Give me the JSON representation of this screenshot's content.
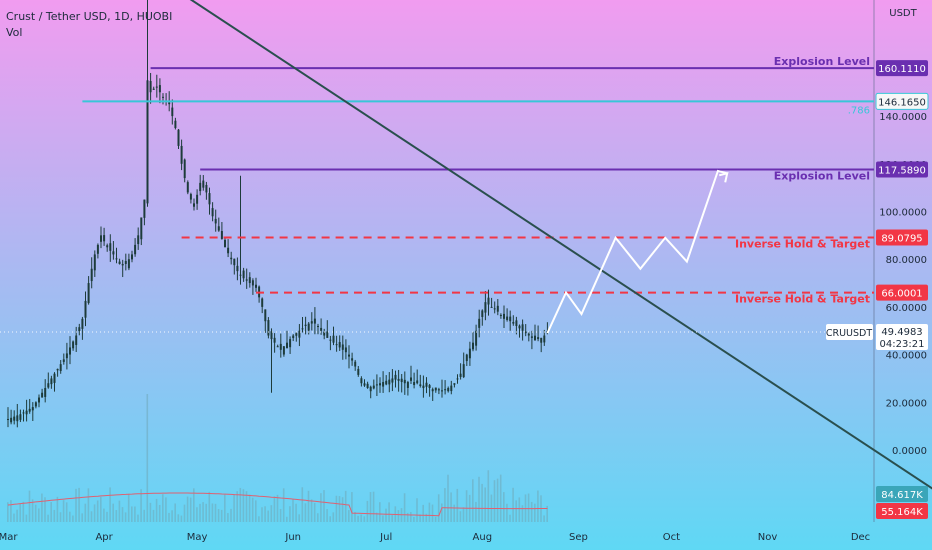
{
  "header": {
    "title": "Crust / Tether USD, 1D, HUOBI",
    "sub": "Vol"
  },
  "colors": {
    "bg_top": "#f19cf0",
    "bg_bottom": "#5fd8f4",
    "candle": "#1d3b3a",
    "trend": "#2a4f4e",
    "purple": "#6a2fb0",
    "cyan": "#39c6d8",
    "red": "#f23645",
    "white": "#ffffff",
    "vol_line": "#e06070"
  },
  "chart_data": {
    "type": "candlestick",
    "title": "Crust / Tether USD, 1D, HUOBI",
    "yaxis": {
      "unit_label": "USDT",
      "ticks": [
        "160.0000",
        "140.0000",
        "120.0000",
        "100.0000",
        "80.0000",
        "60.0000",
        "40.0000",
        "20.0000",
        "0.0000"
      ],
      "range": [
        -20,
        200
      ]
    },
    "xaxis": {
      "ticks": [
        "Mar",
        "Apr",
        "May",
        "Jun",
        "Jul",
        "Aug",
        "Sep",
        "Oct",
        "Nov",
        "Dec"
      ]
    },
    "price_path": [
      [
        0,
        13
      ],
      [
        4,
        15
      ],
      [
        8,
        18
      ],
      [
        10,
        22
      ],
      [
        14,
        30
      ],
      [
        18,
        38
      ],
      [
        22,
        48
      ],
      [
        24,
        55
      ],
      [
        26,
        70
      ],
      [
        28,
        82
      ],
      [
        30,
        90
      ],
      [
        32,
        85
      ],
      [
        34,
        82
      ],
      [
        36,
        78
      ],
      [
        38,
        78
      ],
      [
        40,
        82
      ],
      [
        42,
        90
      ],
      [
        44,
        105
      ],
      [
        45,
        155
      ],
      [
        46,
        150
      ],
      [
        48,
        152
      ],
      [
        50,
        148
      ],
      [
        52,
        145
      ],
      [
        54,
        135
      ],
      [
        56,
        120
      ],
      [
        58,
        108
      ],
      [
        60,
        102
      ],
      [
        62,
        112
      ],
      [
        64,
        108
      ],
      [
        66,
        98
      ],
      [
        68,
        92
      ],
      [
        70,
        85
      ],
      [
        72,
        80
      ],
      [
        74,
        75
      ],
      [
        76,
        72
      ],
      [
        78,
        70
      ],
      [
        80,
        68
      ],
      [
        82,
        60
      ],
      [
        84,
        48
      ],
      [
        86,
        45
      ],
      [
        88,
        42
      ],
      [
        90,
        45
      ],
      [
        92,
        48
      ],
      [
        94,
        50
      ],
      [
        96,
        52
      ],
      [
        98,
        54
      ],
      [
        100,
        52
      ],
      [
        102,
        48
      ],
      [
        104,
        46
      ],
      [
        106,
        44
      ],
      [
        108,
        42
      ],
      [
        110,
        40
      ],
      [
        112,
        35
      ],
      [
        114,
        28
      ],
      [
        116,
        26
      ],
      [
        118,
        27
      ],
      [
        120,
        28
      ],
      [
        122,
        29
      ],
      [
        124,
        30
      ],
      [
        126,
        29
      ],
      [
        128,
        28
      ],
      [
        130,
        29
      ],
      [
        132,
        28
      ],
      [
        134,
        27
      ],
      [
        136,
        26
      ],
      [
        138,
        25
      ],
      [
        140,
        25
      ],
      [
        142,
        26
      ],
      [
        144,
        28
      ],
      [
        146,
        32
      ],
      [
        148,
        40
      ],
      [
        150,
        45
      ],
      [
        152,
        55
      ],
      [
        154,
        62
      ],
      [
        156,
        60
      ],
      [
        158,
        58
      ],
      [
        160,
        55
      ],
      [
        162,
        54
      ],
      [
        164,
        52
      ],
      [
        166,
        50
      ],
      [
        168,
        48
      ],
      [
        170,
        46
      ],
      [
        172,
        47
      ],
      [
        174,
        49
      ]
    ],
    "trendline": {
      "from": [
        46,
        200
      ],
      "to": [
        305,
        -22
      ]
    },
    "levels": [
      {
        "name": "Explosion Level",
        "value": 160.111,
        "price_label": "160.1110",
        "style": "solid",
        "color": "#6a2fb0"
      },
      {
        "name": ".786",
        "value": 146.165,
        "price_label": "146.1650",
        "style": "solid",
        "color": "#39c6d8"
      },
      {
        "name": "Explosion Level",
        "value": 117.589,
        "price_label": "117.5890",
        "style": "solid",
        "color": "#6a2fb0"
      },
      {
        "name": "Inverse Hold & Target",
        "value": 89.0795,
        "price_label": "89.0795",
        "style": "dashed",
        "color": "#f23645"
      },
      {
        "name": "Inverse Hold & Target",
        "value": 66.0001,
        "price_label": "66.0001",
        "style": "dashed",
        "color": "#f23645"
      }
    ],
    "projection": [
      [
        174,
        49
      ],
      [
        180,
        66
      ],
      [
        185,
        57
      ],
      [
        196,
        89
      ],
      [
        204,
        76
      ],
      [
        212,
        89
      ],
      [
        219,
        79
      ],
      [
        229,
        117
      ],
      [
        232,
        116
      ]
    ],
    "current": {
      "symbol": "CRUUSDT",
      "price": "49.4983",
      "countdown": "04:23:21"
    },
    "volume": {
      "labels": [
        "84.617K",
        "55.164K"
      ]
    }
  }
}
